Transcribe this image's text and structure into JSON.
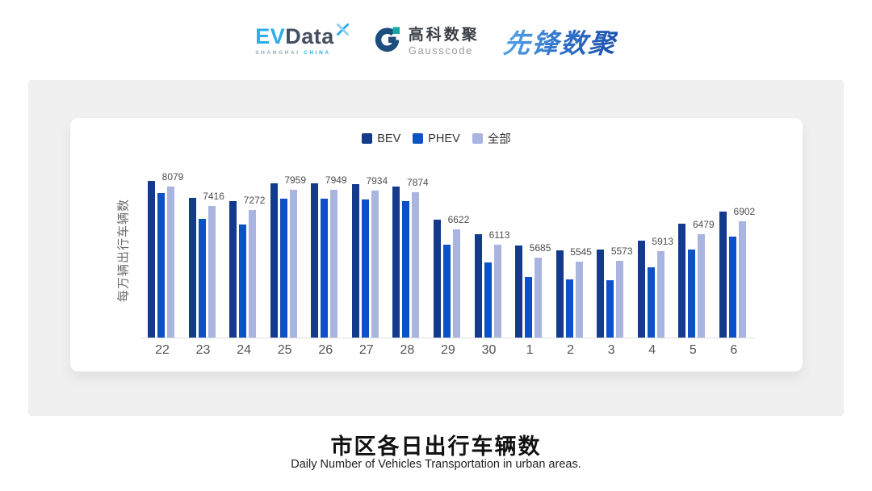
{
  "header": {
    "evdata": {
      "ev": "EV",
      "data": "Data",
      "sub_left": "SHANGHAI",
      "sub_right": "CHINA"
    },
    "gausscode": {
      "cn": "高科数聚",
      "en": "Gausscode"
    },
    "xianfeng": {
      "text": "先锋数聚"
    }
  },
  "chart_data": {
    "type": "bar",
    "title": "市区各日出行车辆数",
    "subtitle": "Daily Number of Vehicles Transportation in urban areas.",
    "ylabel": "每万辆出行车辆数",
    "categories": [
      "22",
      "23",
      "24",
      "25",
      "26",
      "27",
      "28",
      "29",
      "30",
      "1",
      "2",
      "3",
      "4",
      "5",
      "6"
    ],
    "series": [
      {
        "name": "BEV",
        "color": "#143a8c",
        "values": [
          8260,
          7700,
          7580,
          8170,
          8170,
          8150,
          8080,
          6950,
          6470,
          6090,
          5930,
          5950,
          6240,
          6810,
          7240
        ]
      },
      {
        "name": "PHEV",
        "color": "#0c51c8",
        "values": [
          7850,
          6990,
          6790,
          7670,
          7660,
          7630,
          7580,
          6110,
          5530,
          5030,
          4940,
          4930,
          5360,
          5950,
          6390
        ]
      },
      {
        "name": "全部",
        "color": "#a9b4e0",
        "values": [
          8079,
          7416,
          7272,
          7959,
          7949,
          7934,
          7874,
          6622,
          6113,
          5685,
          5545,
          5573,
          5913,
          6479,
          6902
        ]
      }
    ],
    "data_labels": [
      8079,
      7416,
      7272,
      7959,
      7949,
      7934,
      7874,
      6622,
      6113,
      5685,
      5545,
      5573,
      5913,
      6479,
      6902
    ],
    "ylim": [
      3000,
      8500
    ],
    "legend_position": "top",
    "grid": false,
    "axis_line_color": "#e0e0e0"
  }
}
